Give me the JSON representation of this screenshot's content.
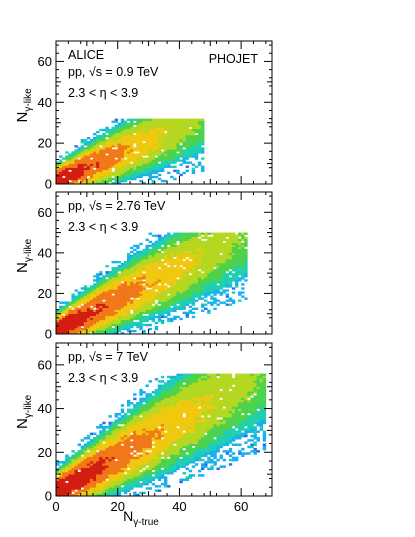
{
  "figure": {
    "xlabel": "N",
    "xlabel_sub": "γ-true",
    "ylabel": "N",
    "ylabel_sub": "γ-like"
  },
  "chart_data": [
    {
      "type": "heatmap",
      "title": "",
      "labels": [
        "ALICE",
        "pp, √s = 0.9 TeV",
        "2.3 < η < 3.9"
      ],
      "generator": "PHOJET",
      "xlim": [
        0,
        70
      ],
      "ylim": [
        0,
        70
      ],
      "xticks": [
        0,
        20,
        40,
        60
      ],
      "yticks": [
        0,
        20,
        40,
        60
      ],
      "density_profile": {
        "slope": 0.65,
        "x_reach": 48,
        "y_reach": 32,
        "width": 3.0
      }
    },
    {
      "type": "heatmap",
      "title": "",
      "labels": [
        "pp, √s = 2.76 TeV",
        "2.3 < η < 3.9"
      ],
      "xlim": [
        0,
        70
      ],
      "ylim": [
        0,
        70
      ],
      "xticks": [
        0,
        20,
        40,
        60
      ],
      "yticks": [
        0,
        20,
        40,
        60
      ],
      "density_profile": {
        "slope": 0.78,
        "x_reach": 62,
        "y_reach": 50,
        "width": 3.4
      }
    },
    {
      "type": "heatmap",
      "title": "",
      "labels": [
        "pp, √s = 7 TeV",
        "2.3 < η < 3.9"
      ],
      "xlim": [
        0,
        70
      ],
      "ylim": [
        0,
        70
      ],
      "xticks": [
        0,
        20,
        40,
        60
      ],
      "yticks": [
        0,
        20,
        40,
        60
      ],
      "density_profile": {
        "slope": 0.82,
        "x_reach": 68,
        "y_reach": 56,
        "width": 3.8
      }
    }
  ],
  "colors": {
    "palette": [
      "#3d10c8",
      "#7a1fe8",
      "#2a6cf0",
      "#19b0ee",
      "#1fd0b0",
      "#4cd24c",
      "#b4d821",
      "#f0c80f",
      "#f07818",
      "#d21d10"
    ]
  }
}
